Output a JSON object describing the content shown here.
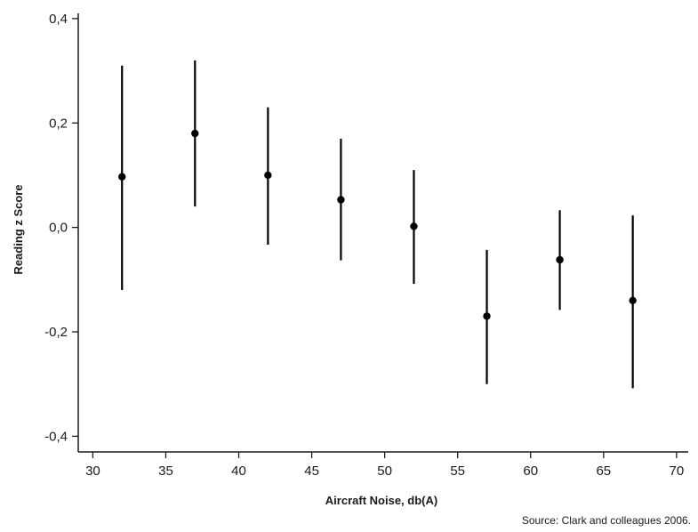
{
  "chart_data": {
    "type": "scatter",
    "error_bars": true,
    "xlabel": "Aircraft Noise, db(A)",
    "ylabel": "Reading z Score",
    "xlim": [
      29,
      70.8
    ],
    "ylim": [
      -0.43,
      0.41
    ],
    "x_ticks": [
      30,
      35,
      40,
      45,
      50,
      55,
      60,
      65,
      70
    ],
    "x_tick_labels": [
      "30",
      "35",
      "40",
      "45",
      "50",
      "55",
      "60",
      "65",
      "70"
    ],
    "y_ticks": [
      0.4,
      0.2,
      0.0,
      -0.2,
      -0.4
    ],
    "y_tick_labels": [
      "0,4",
      "0,2",
      "0,0",
      "-0,2",
      "-0,4"
    ],
    "grid": false,
    "points": [
      {
        "x": 32,
        "y": 0.097,
        "lower": -0.12,
        "upper": 0.31
      },
      {
        "x": 37,
        "y": 0.18,
        "lower": 0.04,
        "upper": 0.32
      },
      {
        "x": 42,
        "y": 0.1,
        "lower": -0.033,
        "upper": 0.23
      },
      {
        "x": 47,
        "y": 0.053,
        "lower": -0.063,
        "upper": 0.17
      },
      {
        "x": 52,
        "y": 0.002,
        "lower": -0.108,
        "upper": 0.11
      },
      {
        "x": 57,
        "y": -0.17,
        "lower": -0.3,
        "upper": -0.043
      },
      {
        "x": 62,
        "y": -0.062,
        "lower": -0.158,
        "upper": 0.033
      },
      {
        "x": 67,
        "y": -0.14,
        "lower": -0.308,
        "upper": 0.023
      }
    ],
    "colors": {
      "marker": "#000000",
      "axis": "#1a1a1a"
    }
  },
  "source": "Source: Clark and colleagues 2006."
}
